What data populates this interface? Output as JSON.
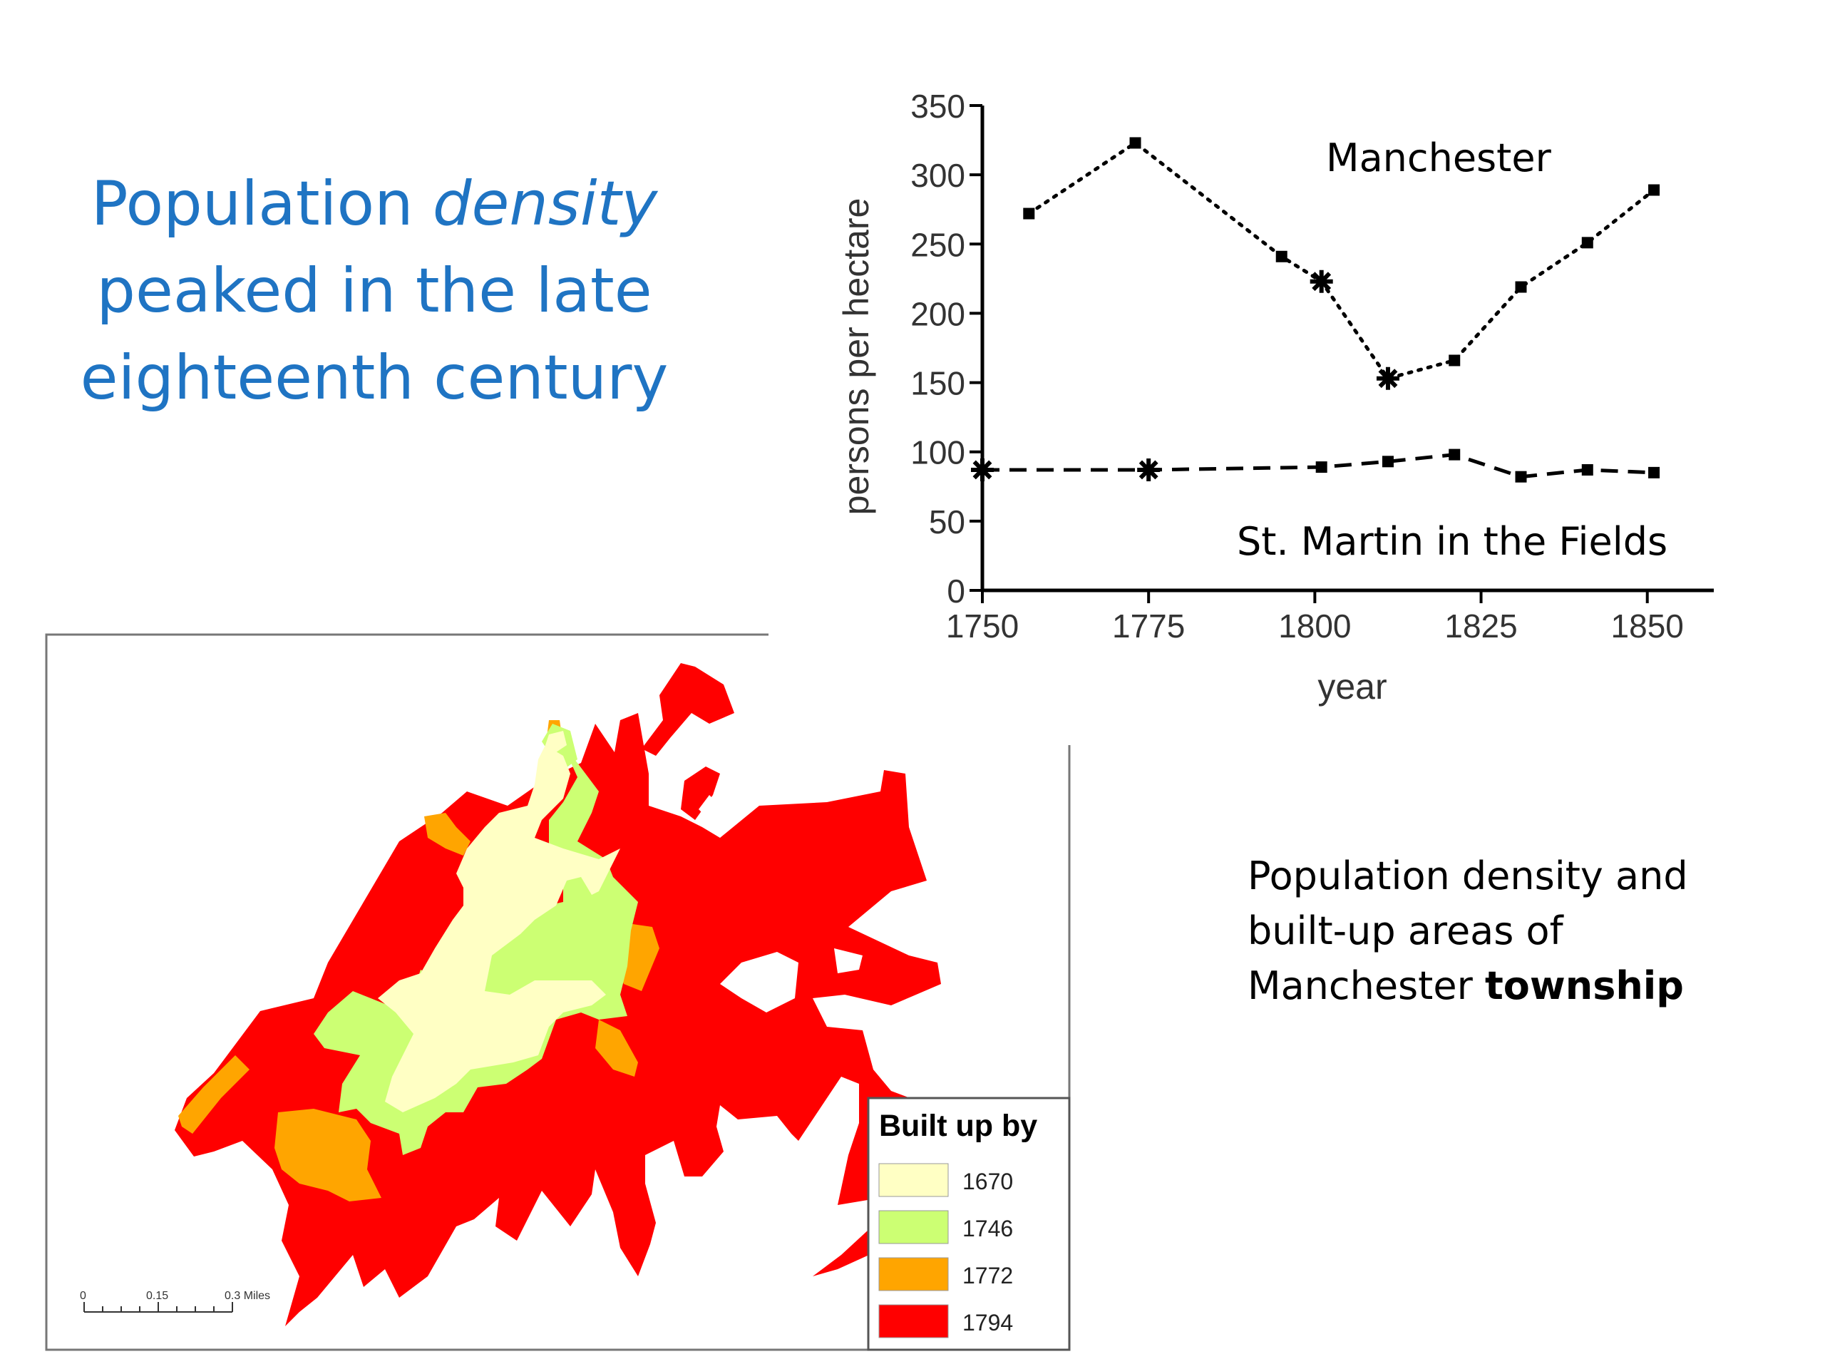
{
  "heading": {
    "part1": "Population ",
    "emphasis": "density",
    "part2": " peaked in the late eighteenth century",
    "color": "#1f74c3"
  },
  "chart_data": {
    "type": "line",
    "xlabel": "year",
    "ylabel": "persons per hectare",
    "xlim": [
      1750,
      1860
    ],
    "ylim": [
      0,
      350
    ],
    "xticks": [
      1750,
      1775,
      1800,
      1825,
      1850
    ],
    "yticks": [
      0,
      50,
      100,
      150,
      200,
      250,
      300,
      350
    ],
    "series": [
      {
        "name": "Manchester",
        "style": "dotted",
        "points": [
          {
            "x": 1757,
            "y": 272,
            "marker": "square"
          },
          {
            "x": 1773,
            "y": 323,
            "marker": "square"
          },
          {
            "x": 1795,
            "y": 241,
            "marker": "square"
          },
          {
            "x": 1801,
            "y": 223,
            "marker": "star"
          },
          {
            "x": 1811,
            "y": 153,
            "marker": "star"
          },
          {
            "x": 1821,
            "y": 166,
            "marker": "square"
          },
          {
            "x": 1831,
            "y": 219,
            "marker": "square"
          },
          {
            "x": 1841,
            "y": 251,
            "marker": "square"
          },
          {
            "x": 1851,
            "y": 289,
            "marker": "square"
          }
        ]
      },
      {
        "name": "St. Martin in the Fields",
        "style": "dashed",
        "points": [
          {
            "x": 1750,
            "y": 87,
            "marker": "star"
          },
          {
            "x": 1775,
            "y": 87,
            "marker": "star"
          },
          {
            "x": 1801,
            "y": 89,
            "marker": "square"
          },
          {
            "x": 1811,
            "y": 93,
            "marker": "square"
          },
          {
            "x": 1821,
            "y": 98,
            "marker": "square"
          },
          {
            "x": 1831,
            "y": 82,
            "marker": "square"
          },
          {
            "x": 1841,
            "y": 87,
            "marker": "square"
          },
          {
            "x": 1851,
            "y": 85,
            "marker": "square"
          }
        ]
      }
    ]
  },
  "caption": {
    "part1": "Population density and built-up areas of Manchester ",
    "bold": "township"
  },
  "map": {
    "legend_title": "Built up by",
    "legend": [
      {
        "label": "1670",
        "color": "#ffffc4"
      },
      {
        "label": "1746",
        "color": "#ccff73"
      },
      {
        "label": "1772",
        "color": "#ffa500"
      },
      {
        "label": "1794",
        "color": "#ff0000"
      }
    ],
    "scale_labels": [
      "0",
      "0.15",
      "0.3 Miles"
    ]
  }
}
